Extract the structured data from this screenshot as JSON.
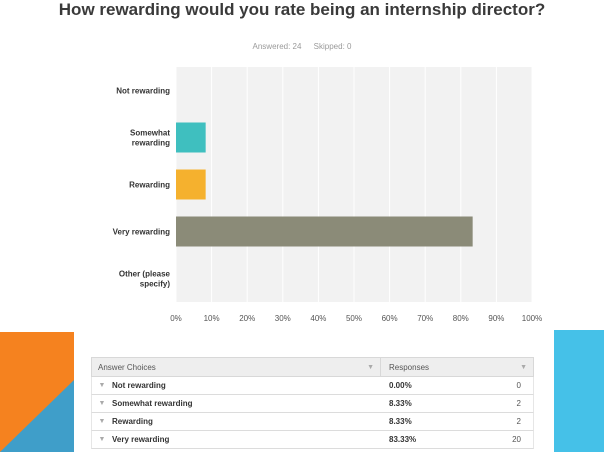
{
  "title": "How rewarding would you rate being an internship director?",
  "stats": {
    "answered": "Answered: 24",
    "skipped": "Skipped: 0"
  },
  "colors": {
    "somewhat": "#3fbfbf",
    "rewarding": "#f5b12e",
    "very": "#8b8b78",
    "plot_bg": "#f2f2f2",
    "grid": "#ffffff",
    "deco_orange": "#f5821f",
    "deco_blue": "#3f9ec9",
    "deco_cyan": "#45c1e8"
  },
  "chart_data": {
    "type": "bar",
    "orientation": "horizontal",
    "categories": [
      "Not rewarding",
      "Somewhat rewarding",
      "Rewarding",
      "Very rewarding",
      "Other (please specify)"
    ],
    "category_lines": [
      [
        "Not rewarding"
      ],
      [
        "Somewhat",
        "rewarding"
      ],
      [
        "Rewarding"
      ],
      [
        "Very rewarding"
      ],
      [
        "Other (please",
        "specify)"
      ]
    ],
    "values": [
      0,
      8.33,
      8.33,
      83.33,
      0
    ],
    "xlim": [
      0,
      100
    ],
    "ticks": [
      "0%",
      "10%",
      "20%",
      "30%",
      "40%",
      "50%",
      "60%",
      "70%",
      "80%",
      "90%",
      "100%"
    ],
    "grid": true
  },
  "table": {
    "headers": [
      "Answer Choices",
      "Responses"
    ],
    "rows": [
      {
        "choice": "Not rewarding",
        "percent": "0.00%",
        "count": "0"
      },
      {
        "choice": "Somewhat rewarding",
        "percent": "8.33%",
        "count": "2"
      },
      {
        "choice": "Rewarding",
        "percent": "8.33%",
        "count": "2"
      },
      {
        "choice": "Very rewarding",
        "percent": "83.33%",
        "count": "20"
      }
    ]
  }
}
